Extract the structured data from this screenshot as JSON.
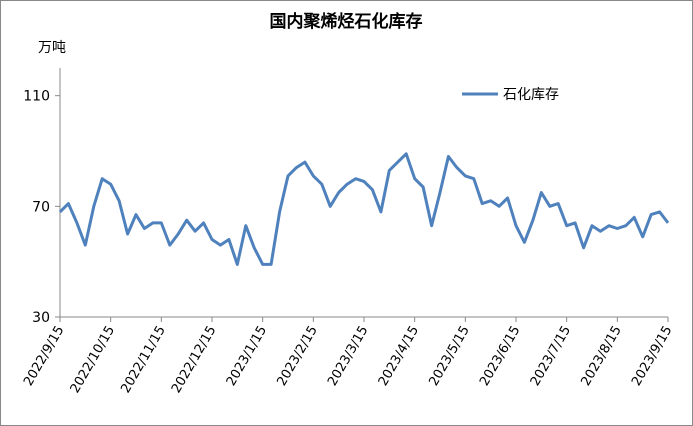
{
  "chart_data": {
    "type": "line",
    "title": "国内聚烯烃石化库存",
    "y_label": "万吨",
    "categories": [
      "2022/9/15",
      null,
      null,
      null,
      null,
      null,
      "2022/10/15",
      null,
      null,
      null,
      null,
      null,
      "2022/11/15",
      null,
      null,
      null,
      null,
      null,
      "2022/12/15",
      null,
      null,
      null,
      null,
      null,
      "2023/1/15",
      null,
      null,
      null,
      null,
      null,
      "2023/2/15",
      null,
      null,
      null,
      null,
      null,
      "2023/3/15",
      null,
      null,
      null,
      null,
      null,
      "2023/4/15",
      null,
      null,
      null,
      null,
      null,
      "2023/5/15",
      null,
      null,
      null,
      null,
      null,
      "2023/6/15",
      null,
      null,
      null,
      null,
      null,
      "2023/7/15",
      null,
      null,
      null,
      null,
      null,
      "2023/8/15",
      null,
      null,
      null,
      null,
      null,
      "2023/9/15"
    ],
    "series": [
      {
        "name": "石化库存",
        "color": "#4f81bd",
        "values": [
          68,
          71,
          64,
          56,
          70,
          80,
          78,
          72,
          60,
          67,
          62,
          64,
          64,
          56,
          60,
          65,
          61,
          64,
          58,
          56,
          58,
          49,
          63,
          55,
          49,
          49,
          68,
          81,
          84,
          86,
          81,
          78,
          70,
          75,
          78,
          80,
          79,
          76,
          68,
          83,
          86,
          89,
          80,
          77,
          63,
          75,
          88,
          84,
          81,
          80,
          71,
          72,
          70,
          73,
          63,
          57,
          65,
          75,
          70,
          71,
          63,
          64,
          55,
          63,
          61,
          63,
          62,
          63,
          66,
          59,
          67,
          68,
          64
        ]
      }
    ],
    "ylim": [
      30,
      120
    ],
    "yticks": [
      30,
      70,
      110
    ],
    "grid": false,
    "legend": "top-right"
  }
}
